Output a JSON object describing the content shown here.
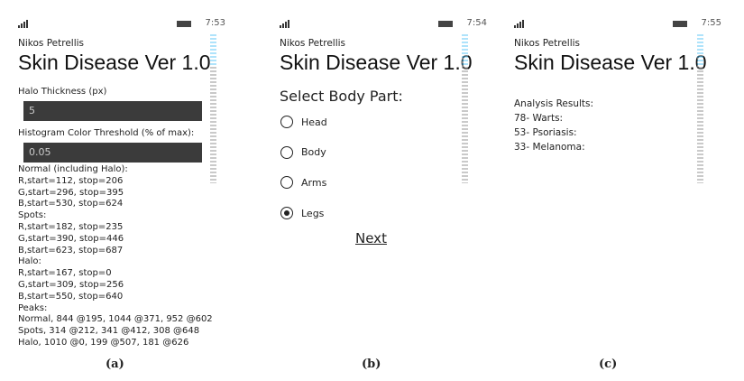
{
  "panels": {
    "a": {
      "time": "7:53",
      "author": "Nikos Petrellis",
      "title": "Skin Disease Ver 1.0",
      "halo_label": "Halo Thickness (px)",
      "halo_value": "5",
      "threshold_label": "Histogram Color Threshold (% of max):",
      "threshold_value": "0.05",
      "lines": [
        "Normal (including Halo):",
        "R,start=112, stop=206",
        "G,start=296, stop=395",
        "B,start=530, stop=624",
        "Spots:",
        "R,start=182, stop=235",
        "G,start=390, stop=446",
        "B,start=623, stop=687",
        "Halo:",
        "R,start=167, stop=0",
        "G,start=309, stop=256",
        "B,start=550, stop=640",
        "Peaks:",
        "Normal, 844 @195, 1044 @371, 952 @602",
        "Spots, 314 @212, 341 @412, 308 @648",
        "Halo, 1010 @0, 199 @507, 181 @626"
      ],
      "caption": "(a)"
    },
    "b": {
      "time": "7:54",
      "author": "Nikos Petrellis",
      "title": "Skin Disease Ver 1.0",
      "prompt": "Select Body Part:",
      "options": [
        {
          "label": "Head",
          "selected": false
        },
        {
          "label": "Body",
          "selected": false
        },
        {
          "label": "Arms",
          "selected": false
        },
        {
          "label": "Legs",
          "selected": true
        }
      ],
      "next_label": "Next",
      "caption": "(b)"
    },
    "c": {
      "time": "7:55",
      "author": "Nikos Petrellis",
      "title": "Skin Disease Ver 1.0",
      "lines": [
        "Analysis Results:",
        "78- Warts:",
        "53- Psoriasis:",
        "33- Melanoma:"
      ],
      "caption": "(c)"
    }
  },
  "colors": {
    "input_bg": "#3b3b3b",
    "debug_accent": "#4fc3f7"
  }
}
